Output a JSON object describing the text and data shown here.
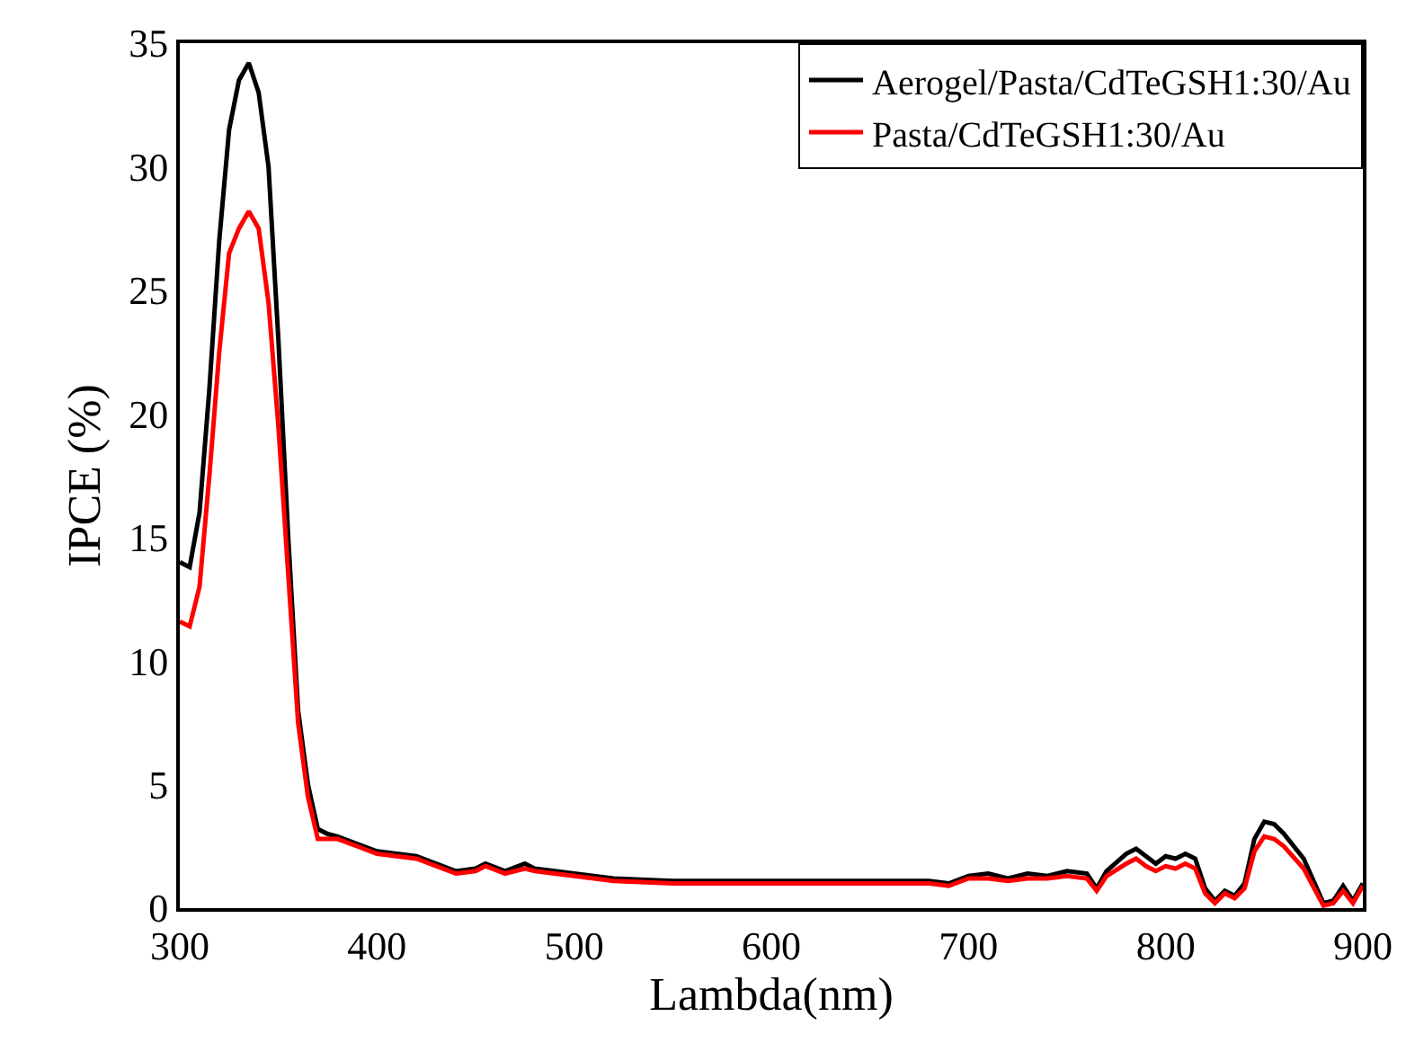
{
  "chart_data": {
    "type": "line",
    "xlabel": "Lambda(nm)",
    "ylabel": "IPCE (%)",
    "x": [
      300,
      305,
      310,
      315,
      320,
      325,
      330,
      335,
      340,
      345,
      350,
      355,
      360,
      365,
      370,
      375,
      380,
      390,
      400,
      420,
      440,
      450,
      455,
      465,
      475,
      480,
      500,
      520,
      550,
      600,
      650,
      680,
      690,
      700,
      710,
      720,
      730,
      740,
      750,
      760,
      765,
      770,
      780,
      785,
      790,
      795,
      800,
      805,
      810,
      815,
      820,
      825,
      830,
      835,
      840,
      845,
      850,
      855,
      860,
      870,
      880,
      885,
      890,
      895,
      900
    ],
    "series": [
      {
        "name": "Aerogel/Pasta/CdTeGSH1:30/Au",
        "color": "#000000",
        "values": [
          14,
          13.8,
          16,
          21,
          27,
          31.5,
          33.5,
          34.2,
          33,
          30,
          23,
          15,
          8,
          5,
          3.2,
          3,
          2.9,
          2.6,
          2.3,
          2.1,
          1.5,
          1.6,
          1.8,
          1.5,
          1.8,
          1.6,
          1.4,
          1.2,
          1.1,
          1.1,
          1.1,
          1.1,
          1,
          1.3,
          1.4,
          1.2,
          1.4,
          1.3,
          1.5,
          1.4,
          0.8,
          1.5,
          2.2,
          2.4,
          2.1,
          1.8,
          2.1,
          2,
          2.2,
          2,
          0.8,
          0.3,
          0.7,
          0.5,
          1,
          2.8,
          3.5,
          3.4,
          3,
          2,
          0.2,
          0.3,
          0.9,
          0.3,
          1
        ]
      },
      {
        "name": "Pasta/CdTeGSH1:30/Au",
        "color": "#ff0000",
        "values": [
          11.6,
          11.4,
          13,
          17.5,
          22.5,
          26.5,
          27.5,
          28.2,
          27.5,
          24.5,
          19.5,
          13.5,
          7.5,
          4.5,
          2.8,
          2.8,
          2.8,
          2.5,
          2.2,
          2,
          1.4,
          1.5,
          1.7,
          1.4,
          1.6,
          1.5,
          1.3,
          1.1,
          1,
          1,
          1,
          1,
          0.9,
          1.2,
          1.2,
          1.1,
          1.2,
          1.2,
          1.3,
          1.2,
          0.7,
          1.3,
          1.8,
          2,
          1.7,
          1.5,
          1.7,
          1.6,
          1.8,
          1.6,
          0.6,
          0.2,
          0.6,
          0.4,
          0.8,
          2.3,
          2.9,
          2.8,
          2.5,
          1.6,
          0.1,
          0.2,
          0.7,
          0.2,
          0.9
        ]
      }
    ],
    "xlim": [
      300,
      900
    ],
    "xticks": [
      300,
      400,
      500,
      600,
      700,
      800,
      900
    ],
    "ylim": [
      0,
      35
    ],
    "yticks": [
      0,
      5,
      10,
      15,
      20,
      25,
      30,
      35
    ],
    "grid": false,
    "legend": "top right",
    "marker": "none",
    "line_style": "solid"
  }
}
